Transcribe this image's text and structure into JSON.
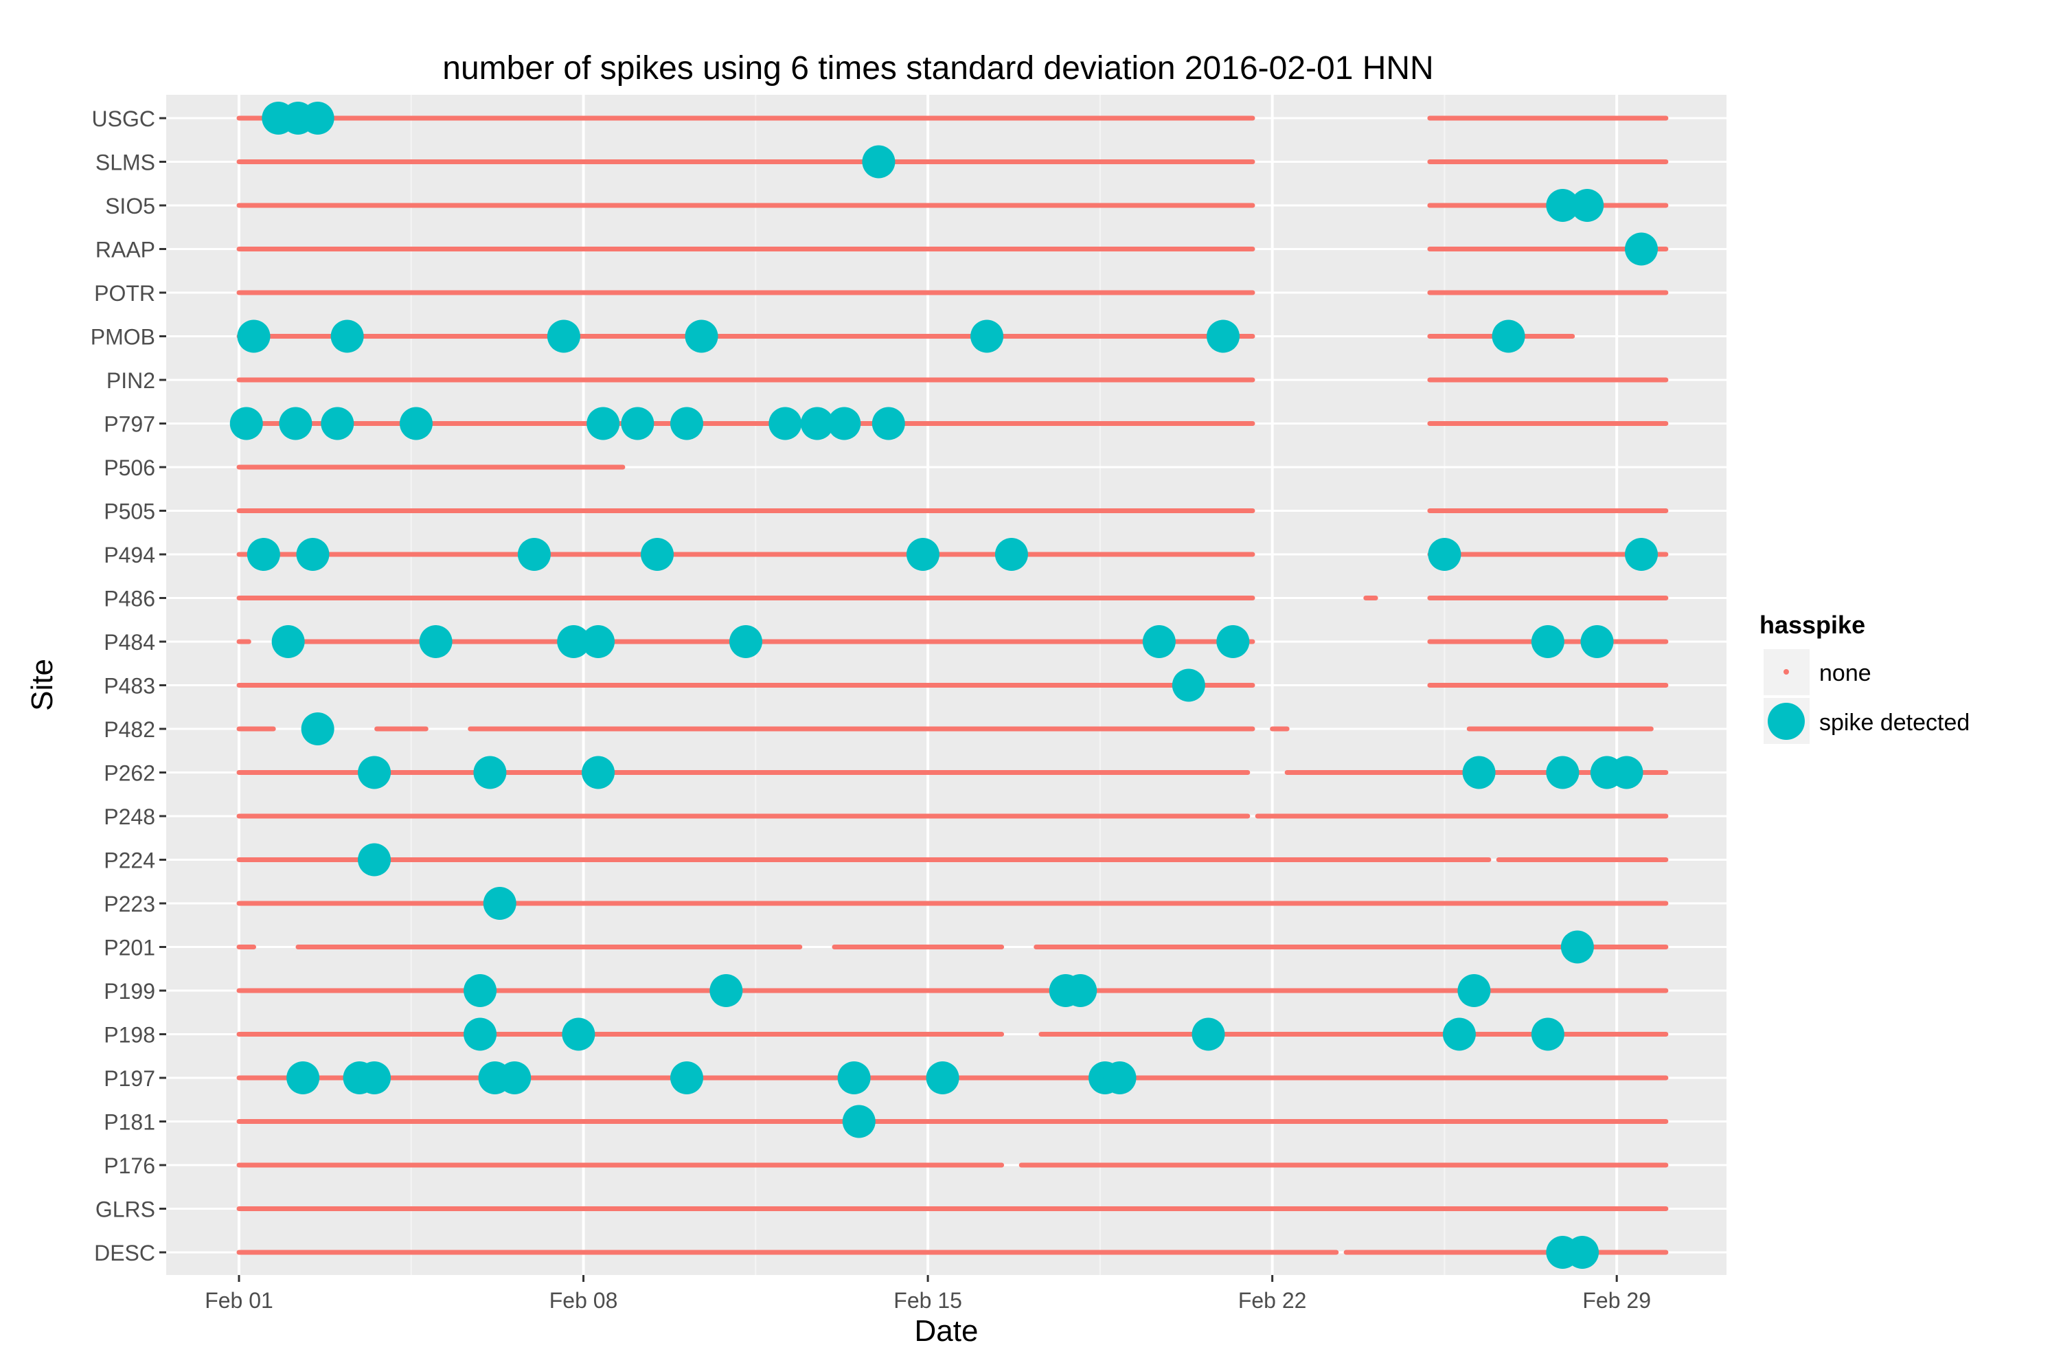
{
  "chart_data": {
    "type": "scatter",
    "title": "number of spikes using  6 times standard deviation 2016-02-01 HNN",
    "xlabel": "Date",
    "ylabel": "Site",
    "x_unit": "days since Feb 01 2016",
    "xlim": [
      -1.4,
      30.4
    ],
    "x_ticks": [
      {
        "value": 0,
        "label": "Feb 01"
      },
      {
        "value": 7,
        "label": "Feb 08"
      },
      {
        "value": 14,
        "label": "Feb 15"
      },
      {
        "value": 21,
        "label": "Feb 22"
      },
      {
        "value": 28,
        "label": "Feb 29"
      }
    ],
    "sites": [
      "USGC",
      "SLMS",
      "SIO5",
      "RAAP",
      "POTR",
      "PMOB",
      "PIN2",
      "P797",
      "P506",
      "P505",
      "P494",
      "P486",
      "P484",
      "P483",
      "P482",
      "P262",
      "P248",
      "P224",
      "P223",
      "P201",
      "P199",
      "P198",
      "P197",
      "P181",
      "P176",
      "GLRS",
      "DESC"
    ],
    "legend": {
      "title": "hasspike",
      "position": "right",
      "entries": [
        {
          "label": "none",
          "color": "#F8766D",
          "marker": "small-dot"
        },
        {
          "label": "spike detected",
          "color": "#00BFC4",
          "marker": "large-dot"
        }
      ]
    },
    "colors": {
      "none": "#F8766D",
      "spike": "#00BFC4",
      "panel": "#EBEBEB",
      "grid_major": "#FFFFFF",
      "grid_minor": "#F5F5F5",
      "axis_text": "#4D4D4D"
    },
    "none_segments": {
      "USGC": [
        [
          0,
          20.6
        ],
        [
          24.2,
          29
        ]
      ],
      "SLMS": [
        [
          0,
          20.6
        ],
        [
          24.2,
          29
        ]
      ],
      "SIO5": [
        [
          0,
          20.6
        ],
        [
          24.2,
          29
        ]
      ],
      "RAAP": [
        [
          0,
          20.6
        ],
        [
          24.2,
          29
        ]
      ],
      "POTR": [
        [
          0,
          20.6
        ],
        [
          24.2,
          29
        ]
      ],
      "PMOB": [
        [
          0,
          20.6
        ],
        [
          24.2,
          27.1
        ]
      ],
      "PIN2": [
        [
          0,
          20.6
        ],
        [
          24.2,
          29
        ]
      ],
      "P797": [
        [
          0,
          20.6
        ],
        [
          24.2,
          29
        ]
      ],
      "P506": [
        [
          0,
          7.8
        ]
      ],
      "P505": [
        [
          0,
          20.6
        ],
        [
          24.2,
          29
        ]
      ],
      "P494": [
        [
          0,
          20.6
        ],
        [
          24.2,
          29
        ]
      ],
      "P486": [
        [
          0,
          20.6
        ],
        [
          22.9,
          23.1
        ],
        [
          24.2,
          29
        ]
      ],
      "P484": [
        [
          0,
          0.2
        ],
        [
          1.0,
          20.6
        ],
        [
          24.2,
          29
        ]
      ],
      "P483": [
        [
          0,
          20.6
        ],
        [
          24.2,
          29
        ]
      ],
      "P482": [
        [
          0,
          0.7
        ],
        [
          2.8,
          3.8
        ],
        [
          4.7,
          20.6
        ],
        [
          21.0,
          21.3
        ],
        [
          25.0,
          28.7
        ]
      ],
      "P262": [
        [
          0,
          20.5
        ],
        [
          21.3,
          29
        ]
      ],
      "P248": [
        [
          0,
          20.5
        ],
        [
          20.7,
          29
        ]
      ],
      "P224": [
        [
          0,
          25.4
        ],
        [
          25.6,
          29
        ]
      ],
      "P223": [
        [
          0,
          29
        ]
      ],
      "P201": [
        [
          0,
          0.3
        ],
        [
          1.2,
          11.4
        ],
        [
          12.1,
          15.5
        ],
        [
          16.2,
          29
        ]
      ],
      "P199": [
        [
          0,
          29
        ]
      ],
      "P198": [
        [
          0,
          15.5
        ],
        [
          16.3,
          29
        ]
      ],
      "P197": [
        [
          0,
          29
        ]
      ],
      "P181": [
        [
          0,
          29
        ]
      ],
      "P176": [
        [
          0,
          0.3
        ],
        [
          0.3,
          15.5
        ],
        [
          15.9,
          29
        ]
      ],
      "GLRS": [
        [
          0,
          29
        ]
      ],
      "DESC": [
        [
          0,
          22.3
        ],
        [
          22.5,
          29
        ]
      ]
    },
    "spikes": [
      {
        "site": "USGC",
        "x": [
          0.8,
          1.2,
          1.6
        ]
      },
      {
        "site": "SLMS",
        "x": [
          13.0
        ]
      },
      {
        "site": "SIO5",
        "x": [
          26.9,
          27.4
        ]
      },
      {
        "site": "RAAP",
        "x": [
          28.5
        ]
      },
      {
        "site": "PMOB",
        "x": [
          0.3,
          2.2,
          6.6,
          9.4,
          15.2,
          20.0
        ]
      },
      {
        "site": "PMOB",
        "x": [
          25.8
        ]
      },
      {
        "site": "P797",
        "x": [
          0.15,
          1.15,
          2.0,
          3.6,
          7.4,
          8.1,
          9.1,
          11.1,
          11.75,
          12.3,
          13.2
        ]
      },
      {
        "site": "P494",
        "x": [
          0.5,
          1.5,
          6.0,
          8.5,
          13.9,
          15.7,
          24.5,
          28.5
        ]
      },
      {
        "site": "P484",
        "x": [
          1.0,
          4.0,
          6.8,
          7.3,
          10.3,
          18.7,
          20.2,
          26.6,
          27.6
        ]
      },
      {
        "site": "P483",
        "x": [
          19.3
        ]
      },
      {
        "site": "P482",
        "x": [
          1.6
        ]
      },
      {
        "site": "P262",
        "x": [
          2.75,
          5.1,
          7.3,
          25.2,
          26.9,
          27.8,
          28.2
        ]
      },
      {
        "site": "P224",
        "x": [
          2.75
        ]
      },
      {
        "site": "P223",
        "x": [
          5.3
        ]
      },
      {
        "site": "P201",
        "x": [
          27.2
        ]
      },
      {
        "site": "P199",
        "x": [
          4.9,
          9.9,
          16.8,
          17.1,
          25.1
        ]
      },
      {
        "site": "P198",
        "x": [
          4.9,
          6.9,
          19.7,
          24.8,
          26.6
        ]
      },
      {
        "site": "P197",
        "x": [
          1.3,
          2.45,
          2.75,
          5.2,
          5.6,
          9.1,
          12.5,
          14.3,
          17.6,
          17.9
        ]
      },
      {
        "site": "P181",
        "x": [
          12.6
        ]
      },
      {
        "site": "DESC",
        "x": [
          26.9,
          27.3
        ]
      }
    ]
  }
}
